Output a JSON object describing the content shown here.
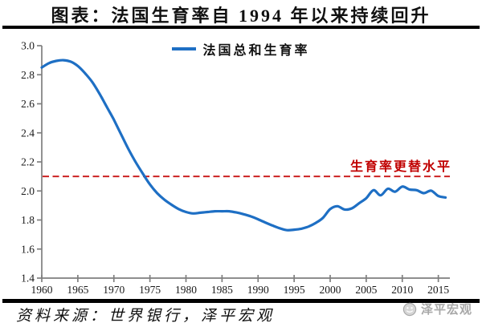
{
  "header": {
    "title": "图表：法国生育率自 1994 年以来持续回升"
  },
  "footer": {
    "source": "资料来源：世界银行，泽平宏观",
    "watermark": "泽平宏观"
  },
  "colors": {
    "line": "#1e6fc4",
    "reference_line": "#cc2222",
    "reference_label": "#c00000",
    "axis": "#7f7f7f",
    "watermark": "#a8a8a8"
  },
  "chart_data": {
    "type": "line",
    "title": "图表：法国生育率自 1994 年以来持续回升",
    "xlabel": "",
    "ylabel": "",
    "xlim": [
      1960,
      2016.6
    ],
    "ylim": [
      1.4,
      3.0
    ],
    "grid": false,
    "legend_position": "top-center",
    "x_ticks": [
      1960,
      1965,
      1970,
      1975,
      1980,
      1985,
      1990,
      1995,
      2000,
      2005,
      2010,
      2015
    ],
    "y_ticks": [
      "3.0",
      "2.8",
      "2.6",
      "2.4",
      "2.2",
      "2.0",
      "1.8",
      "1.6",
      "1.4"
    ],
    "reference_line": {
      "value": 2.1,
      "label": "生育率更替水平",
      "style": "dashed",
      "color": "#cc2222"
    },
    "series": [
      {
        "name": "法国总和生育率",
        "color": "#1e6fc4",
        "x": [
          1960,
          1961,
          1962,
          1963,
          1964,
          1965,
          1966,
          1967,
          1968,
          1969,
          1970,
          1971,
          1972,
          1973,
          1974,
          1975,
          1976,
          1977,
          1978,
          1979,
          1980,
          1981,
          1982,
          1983,
          1984,
          1985,
          1986,
          1987,
          1988,
          1989,
          1990,
          1991,
          1992,
          1993,
          1994,
          1995,
          1996,
          1997,
          1998,
          1999,
          2000,
          2001,
          2002,
          2003,
          2004,
          2005,
          2006,
          2007,
          2008,
          2009,
          2010,
          2011,
          2012,
          2013,
          2014,
          2015,
          2016
        ],
        "values": [
          2.85,
          2.88,
          2.895,
          2.9,
          2.89,
          2.86,
          2.81,
          2.75,
          2.67,
          2.58,
          2.49,
          2.39,
          2.29,
          2.2,
          2.12,
          2.045,
          1.985,
          1.94,
          1.905,
          1.875,
          1.855,
          1.845,
          1.85,
          1.855,
          1.86,
          1.86,
          1.86,
          1.852,
          1.84,
          1.825,
          1.805,
          1.783,
          1.762,
          1.743,
          1.73,
          1.733,
          1.74,
          1.755,
          1.78,
          1.815,
          1.875,
          1.895,
          1.872,
          1.88,
          1.915,
          1.95,
          2.005,
          1.97,
          2.015,
          1.995,
          2.03,
          2.01,
          2.005,
          1.985,
          2.002,
          1.965,
          1.955
        ]
      }
    ]
  }
}
